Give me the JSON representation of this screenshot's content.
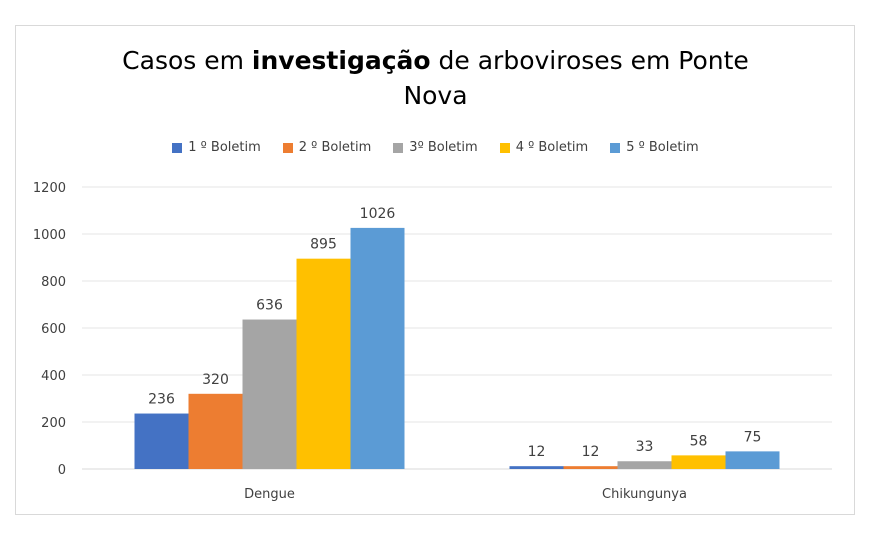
{
  "chart_data": {
    "type": "bar",
    "title_parts": [
      "Casos em ",
      "investigação",
      " de arboviroses em Ponte"
    ],
    "title_line2": "Nova",
    "categories": [
      "Dengue",
      "Chikungunya"
    ],
    "series": [
      {
        "name": "1 º Boletim",
        "color": "#4472c4",
        "values": [
          236,
          12
        ]
      },
      {
        "name": "2 º Boletim",
        "color": "#ed7d31",
        "values": [
          320,
          12
        ]
      },
      {
        "name": "3º Boletim",
        "color": "#a5a5a5",
        "values": [
          636,
          33
        ]
      },
      {
        "name": "4 º Boletim",
        "color": "#ffc000",
        "values": [
          895,
          58
        ]
      },
      {
        "name": "5 º Boletim",
        "color": "#5b9bd5",
        "values": [
          1026,
          75
        ]
      }
    ],
    "ylim": [
      0,
      1200
    ],
    "yticks": [
      0,
      200,
      400,
      600,
      800,
      1000,
      1200
    ],
    "grid": true,
    "legend": "top"
  }
}
